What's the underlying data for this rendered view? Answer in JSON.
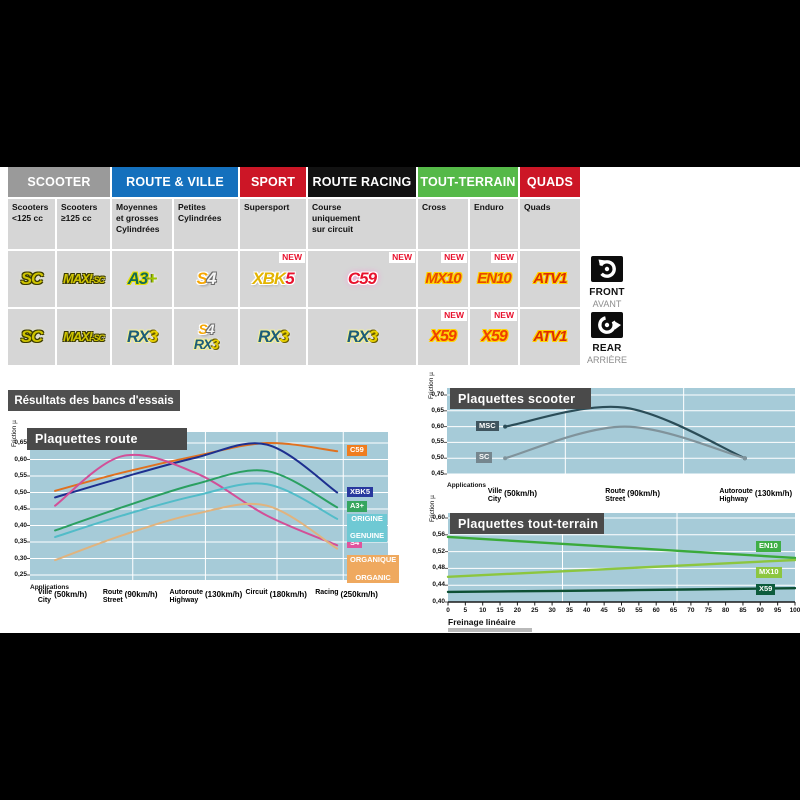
{
  "page": {
    "results_title": "Résultats des bancs d'essais",
    "front": {
      "label": "FRONT",
      "sub": "AVANT"
    },
    "rear": {
      "label": "REAR",
      "sub": "ARRIÈRE"
    },
    "new_badge": "NEW"
  },
  "table": {
    "groups": [
      {
        "label": "SCOOTER",
        "color": "#9a9a9a",
        "span": 2
      },
      {
        "label": "ROUTE & VILLE",
        "color": "#1470bd",
        "span": 2
      },
      {
        "label": "SPORT",
        "color": "#cc1626",
        "span": 1
      },
      {
        "label": "ROUTE RACING",
        "color": "#121212",
        "span": 1
      },
      {
        "label": "TOUT-TERRAIN",
        "color": "#55b948",
        "span": 2
      },
      {
        "label": "QUADS",
        "color": "#cc1626",
        "span": 1
      }
    ],
    "columns": [
      "Scooters\n<125 cc",
      "Scooters\n≥125 cc",
      "Moyennes\net grosses\nCylindrées",
      "Petites\nCylindrées",
      "Supersport",
      "Course\nuniquement\nsur circuit",
      "Cross",
      "Enduro",
      "Quads"
    ],
    "front_row": [
      {
        "name": "SC",
        "new": false,
        "lines": [
          [
            {
              "t": "SC",
              "cls": "sc"
            }
          ]
        ]
      },
      {
        "name": "MAXI-SC",
        "new": false,
        "lines": [
          [
            {
              "t": "MAXI",
              "cls": "sc m1"
            },
            {
              "t": "-SC",
              "cls": "sc m2"
            }
          ]
        ]
      },
      {
        "name": "A3+",
        "new": false,
        "lines": [
          [
            {
              "t": "A3",
              "cls": "a3"
            },
            {
              "t": "+",
              "cls": "plus"
            }
          ]
        ]
      },
      {
        "name": "S4",
        "new": false,
        "lines": [
          [
            {
              "t": "S",
              "cls": "s4s"
            },
            {
              "t": "4",
              "cls": "s44"
            }
          ]
        ]
      },
      {
        "name": "XBK5",
        "new": true,
        "lines": [
          [
            {
              "t": "XBK",
              "cls": "xbk"
            },
            {
              "t": "5",
              "cls": "red5"
            }
          ]
        ]
      },
      {
        "name": "C59",
        "new": true,
        "lines": [
          [
            {
              "t": "C59",
              "cls": "c59"
            }
          ]
        ]
      },
      {
        "name": "MX10",
        "new": true,
        "lines": [
          [
            {
              "t": "MX10",
              "cls": "mx"
            }
          ]
        ]
      },
      {
        "name": "EN10",
        "new": true,
        "lines": [
          [
            {
              "t": "EN10",
              "cls": "mx"
            }
          ]
        ]
      },
      {
        "name": "ATV1",
        "new": false,
        "lines": [
          [
            {
              "t": "ATV1",
              "cls": "atv"
            }
          ]
        ]
      }
    ],
    "rear_row": [
      {
        "name": "SC",
        "new": false,
        "lines": [
          [
            {
              "t": "SC",
              "cls": "sc"
            }
          ]
        ]
      },
      {
        "name": "MAXI-SC",
        "new": false,
        "lines": [
          [
            {
              "t": "MAXI",
              "cls": "sc m1"
            },
            {
              "t": "-SC",
              "cls": "sc m2"
            }
          ]
        ]
      },
      {
        "name": "RX3",
        "new": false,
        "lines": [
          [
            {
              "t": "RX",
              "cls": "rx"
            },
            {
              "t": "3",
              "cls": "y3"
            }
          ]
        ]
      },
      {
        "name": "S4-RX3",
        "new": false,
        "lines": [
          [
            {
              "t": "S",
              "cls": "s4s"
            },
            {
              "t": "4",
              "cls": "s44"
            }
          ],
          [
            {
              "t": "RX",
              "cls": "rx"
            },
            {
              "t": "3",
              "cls": "y3"
            }
          ]
        ]
      },
      {
        "name": "RX3",
        "new": false,
        "lines": [
          [
            {
              "t": "RX",
              "cls": "rx"
            },
            {
              "t": "3",
              "cls": "y3"
            }
          ]
        ]
      },
      {
        "name": "RX3",
        "new": false,
        "lines": [
          [
            {
              "t": "RX",
              "cls": "rx"
            },
            {
              "t": "3",
              "cls": "y3"
            }
          ]
        ]
      },
      {
        "name": "X59",
        "new": true,
        "lines": [
          [
            {
              "t": "X59",
              "cls": "x59"
            }
          ]
        ]
      },
      {
        "name": "X59",
        "new": true,
        "lines": [
          [
            {
              "t": "X59",
              "cls": "x59"
            }
          ]
        ]
      },
      {
        "name": "ATV1",
        "new": false,
        "lines": [
          [
            {
              "t": "ATV1",
              "cls": "atv"
            }
          ]
        ]
      }
    ]
  },
  "chart_data": [
    {
      "id": "route",
      "type": "line",
      "title": "Plaquettes route",
      "ylabel": "Friction µ",
      "xlabel": "Applications",
      "ylim": [
        0.25,
        0.65
      ],
      "yticks": [
        "0,65",
        "0,60",
        "0,55",
        "0,50",
        "0,45",
        "0,40",
        "0,35",
        "0,30",
        "0,25"
      ],
      "grid": true,
      "legend_position": "right",
      "categories": [
        {
          "l1": "Ville",
          "l2": "City",
          "speed": "(50km/h)"
        },
        {
          "l1": "Route",
          "l2": "Street",
          "speed": "(90km/h)"
        },
        {
          "l1": "Autoroute",
          "l2": "Highway",
          "speed": "(130km/h)"
        },
        {
          "l1": "Circuit",
          "l2": "",
          "speed": "(180km/h)"
        },
        {
          "l1": "Racing",
          "l2": "",
          "speed": "(250km/h)"
        }
      ],
      "series": [
        {
          "name": "C59",
          "color": "#e0711f",
          "label_bg": "#ef7d1f",
          "values": [
            0.505,
            0.56,
            0.61,
            0.65,
            0.625
          ],
          "label_y": 0.625
        },
        {
          "name": "XBK5",
          "color": "#1d2f8f",
          "label_bg": "#28389e",
          "values": [
            0.485,
            0.545,
            0.605,
            0.645,
            0.5
          ],
          "label_y": 0.5
        },
        {
          "name": "S4",
          "color": "#d24f98",
          "label_bg": "#e0539c",
          "values": [
            0.46,
            0.61,
            0.56,
            0.43,
            0.34
          ],
          "label_y": 0.345
        },
        {
          "name": "A3+",
          "color": "#2aa061",
          "label_bg": "#35a55f",
          "values": [
            0.385,
            0.455,
            0.525,
            0.565,
            0.455
          ],
          "label_y": 0.455
        },
        {
          "name": "ORIGINE GENUINE",
          "label_lines": [
            "ORIGINE",
            "GENUINE"
          ],
          "color": "#52bcc8",
          "label_bg": "#6fc9d4",
          "values": [
            0.365,
            0.43,
            0.49,
            0.525,
            0.42
          ],
          "label_y": 0.408
        },
        {
          "name": "ORGANIQUE ORGANIC",
          "label_lines": [
            "ORGANIQUE",
            "ORGANIC"
          ],
          "color": "#e0b37e",
          "label_bg": "#efa95f",
          "values": [
            0.295,
            0.37,
            0.435,
            0.46,
            0.33
          ],
          "label_y": 0.282
        }
      ]
    },
    {
      "id": "scooter",
      "type": "line",
      "title": "Plaquettes scooter",
      "ylabel": "Friction µ",
      "xlabel": "Applications",
      "ylim": [
        0.45,
        0.7
      ],
      "yticks": [
        "0,70",
        "0,65",
        "0,60",
        "0,55",
        "0,50",
        "0,45"
      ],
      "grid": true,
      "legend_position": "left",
      "categories": [
        {
          "l1": "Ville",
          "l2": "City",
          "speed": "(50km/h)"
        },
        {
          "l1": "Route",
          "l2": "Street",
          "speed": "(90km/h)"
        },
        {
          "l1": "Autoroute",
          "l2": "Highway",
          "speed": "(130km/h)"
        }
      ],
      "series": [
        {
          "name": "MSC",
          "color": "#2b4d58",
          "label_bg": "#3f545e",
          "values": [
            0.6,
            0.66,
            0.5
          ],
          "label_y": 0.6
        },
        {
          "name": "SC",
          "color": "#80939b",
          "label_bg": "#75868e",
          "values": [
            0.5,
            0.6,
            0.5
          ],
          "label_y": 0.5
        }
      ]
    },
    {
      "id": "toutterrain",
      "type": "line",
      "title": "Plaquettes tout-terrain",
      "ylabel": "Friction µ",
      "xlabel": "Freinage linéaire",
      "ylim": [
        0.4,
        0.6
      ],
      "xlim": [
        0,
        100
      ],
      "yticks": [
        "0,60",
        "0,56",
        "0,52",
        "0,48",
        "0,44",
        "0,40"
      ],
      "xticks": [
        0,
        5,
        10,
        15,
        20,
        25,
        30,
        35,
        40,
        45,
        50,
        55,
        60,
        65,
        70,
        75,
        80,
        85,
        90,
        95,
        100
      ],
      "grid": true,
      "legend_position": "right",
      "series": [
        {
          "name": "EN10",
          "color": "#3aaa3a",
          "label_bg": "#3fae46",
          "points": [
            [
              0,
              0.555
            ],
            [
              50,
              0.53
            ],
            [
              100,
              0.505
            ]
          ],
          "label_y": 0.531
        },
        {
          "name": "MX10",
          "color": "#8cc63f",
          "label_bg": "#8cc63f",
          "points": [
            [
              0,
              0.46
            ],
            [
              50,
              0.48
            ],
            [
              100,
              0.5
            ]
          ],
          "label_y": 0.469
        },
        {
          "name": "X59",
          "color": "#0d4f33",
          "label_bg": "#0d5c3c",
          "points": [
            [
              0,
              0.424
            ],
            [
              50,
              0.428
            ],
            [
              100,
              0.433
            ]
          ],
          "label_y": 0.428
        }
      ]
    }
  ]
}
